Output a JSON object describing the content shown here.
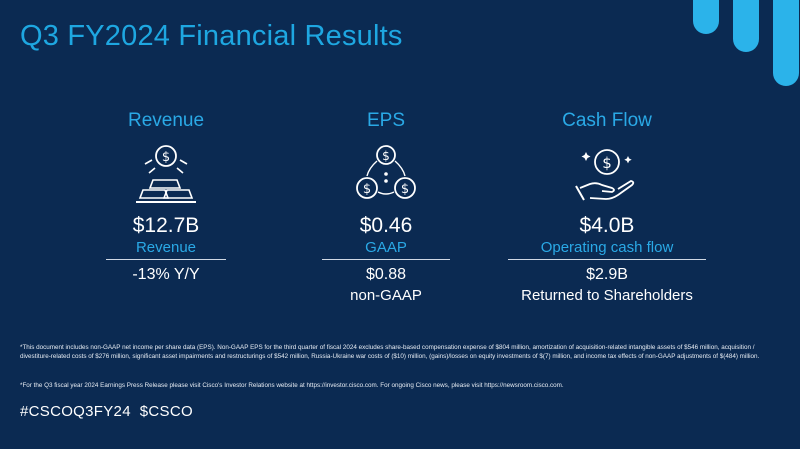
{
  "slide": {
    "title": "Q3 FY2024 Financial Results",
    "colors": {
      "background": "#0b2a52",
      "accent": "#2aa9e6",
      "text": "#ffffff"
    }
  },
  "columns": [
    {
      "heading": "Revenue",
      "icon": "money-bars-icon",
      "value": "$12.7B",
      "value_label": "Revenue",
      "secondary_value": "-13% Y/Y",
      "secondary_label": ""
    },
    {
      "heading": "EPS",
      "icon": "coins-network-icon",
      "value": "$0.46",
      "value_label": "GAAP",
      "secondary_value": "$0.88",
      "secondary_label": "non-GAAP"
    },
    {
      "heading": "Cash Flow",
      "icon": "hand-coin-icon",
      "value": "$4.0B",
      "value_label": "Operating cash flow",
      "secondary_value": "$2.9B",
      "secondary_label": "Returned to Shareholders"
    }
  ],
  "footnotes": {
    "note1": "*This document includes non-GAAP net income per share data (EPS). Non-GAAP EPS for the third quarter of fiscal 2024 excludes share-based compensation expense of $804 million, amortization of acquisition-related intangible assets of $546 million, acquisition / divestiture-related costs of $276 million, significant asset impairments and restructurings of $542 million, Russia-Ukraine war costs of ($10) million, (gains)/losses on equity investments of $(7) million, and income tax effects of non-GAAP adjustments of $(484) million.",
    "note2": "*For the Q3 fiscal year 2024 Earnings Press Release please visit Cisco's Investor Relations website at https://investor.cisco.com. For ongoing Cisco news, please visit https://newsroom.cisco.com."
  },
  "hashtags": "#CSCOQ3FY24  $CSCO"
}
